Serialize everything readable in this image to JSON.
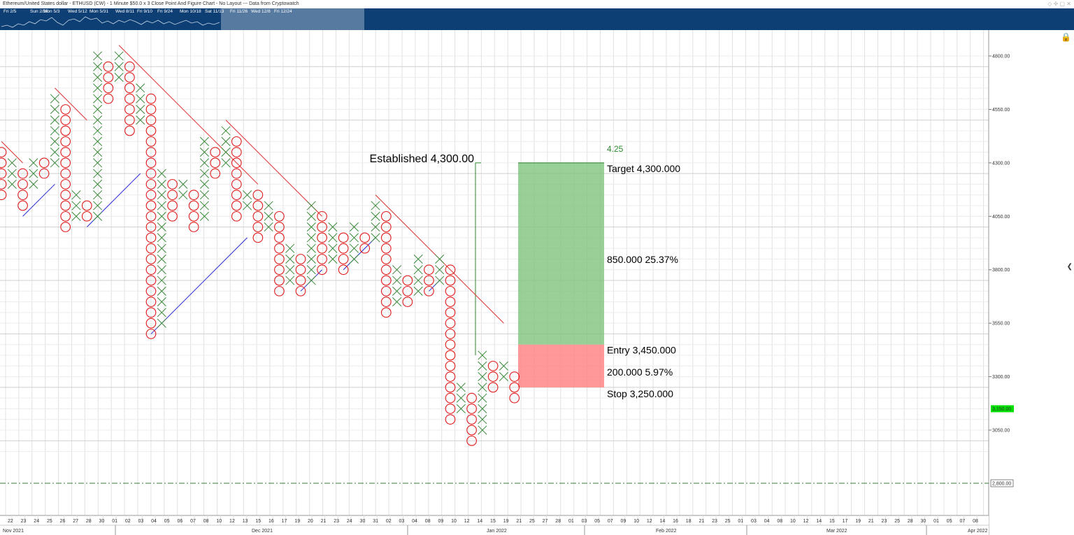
{
  "header": {
    "title": "Ethereum/United States dollar - ETHUSD (CW) - 1 Minute $50.0 x 3 Close Point And Figure Chart - No Layout --- Data from Cryptowatch"
  },
  "navigator": {
    "labels": [
      "Fri 2/5",
      "Sun 2/28",
      "Mon 5/3",
      "Wed 5/12",
      "Mon 5/31",
      "Wed 8/11",
      "Fri 9/10",
      "Fri 9/24",
      "Mon 10/18",
      "Sat 11/13",
      "Fri 11/26",
      "Wed 12/8",
      "Fri 12/24"
    ]
  },
  "colors": {
    "x_mark": "#3a8a3a",
    "o_mark": "#e01c1c",
    "resistance": "#e03030",
    "support": "#2b2bd6",
    "target_zone": "#7ec47e",
    "stop_zone": "#ff7f7f",
    "last_price_badge": "#00e000",
    "grid": "#e2e2e2"
  },
  "chart_data": {
    "type": "point_and_figure",
    "box_size": 50,
    "reversal": 3,
    "y_axis": {
      "ticks": [
        "4800.00",
        "4550.00",
        "4300.00",
        "4050.00",
        "3800.00",
        "3550.00",
        "3300.00",
        "3050.00"
      ],
      "range": [
        2950,
        4850
      ]
    },
    "last_price": "3,150.00",
    "reference_line": "2,800.00",
    "x_tick_labels": [
      "22",
      "23",
      "24",
      "25",
      "26",
      "27",
      "28",
      "30",
      "01",
      "02",
      "03",
      "04",
      "05",
      "06",
      "07",
      "08",
      "10",
      "12",
      "13",
      "15",
      "16",
      "17",
      "19",
      "20",
      "21",
      "23",
      "24",
      "30",
      "31",
      "02",
      "03",
      "04",
      "08",
      "09",
      "10",
      "12",
      "14",
      "15",
      "19",
      "21",
      "25",
      "27",
      "28",
      "01",
      "03",
      "05",
      "07",
      "09",
      "10",
      "12",
      "14",
      "16",
      "18",
      "21",
      "23",
      "25",
      "01",
      "03",
      "04",
      "08",
      "10",
      "12",
      "14",
      "15",
      "17",
      "19",
      "21",
      "23",
      "25",
      "28",
      "30",
      "01",
      "05",
      "07",
      "08"
    ],
    "month_labels": [
      "Nov 2021",
      "Dec 2021",
      "Jan 2022",
      "Feb 2022",
      "Mar 2022",
      "Apr 2022"
    ],
    "columns": [
      {
        "type": "O",
        "from": 4150,
        "to": 4350
      },
      {
        "type": "X",
        "from": 4200,
        "to": 4300
      },
      {
        "type": "O",
        "from": 4100,
        "to": 4250
      },
      {
        "type": "X",
        "from": 4200,
        "to": 4300
      },
      {
        "type": "O",
        "from": 4250,
        "to": 4300
      },
      {
        "type": "X",
        "from": 4300,
        "to": 4600
      },
      {
        "type": "O",
        "from": 4000,
        "to": 4550
      },
      {
        "type": "X",
        "from": 4050,
        "to": 4150
      },
      {
        "type": "O",
        "from": 4050,
        "to": 4100
      },
      {
        "type": "X",
        "from": 4050,
        "to": 4800
      },
      {
        "type": "O",
        "from": 4600,
        "to": 4750
      },
      {
        "type": "X",
        "from": 4700,
        "to": 4800
      },
      {
        "type": "O",
        "from": 4450,
        "to": 4750
      },
      {
        "type": "X",
        "from": 4500,
        "to": 4650
      },
      {
        "type": "O",
        "from": 3500,
        "to": 4600
      },
      {
        "type": "X",
        "from": 3550,
        "to": 4250
      },
      {
        "type": "O",
        "from": 4050,
        "to": 4200
      },
      {
        "type": "X",
        "from": 4150,
        "to": 4200
      },
      {
        "type": "O",
        "from": 4000,
        "to": 4150
      },
      {
        "type": "X",
        "from": 4050,
        "to": 4400
      },
      {
        "type": "O",
        "from": 4250,
        "to": 4350
      },
      {
        "type": "X",
        "from": 4300,
        "to": 4450
      },
      {
        "type": "O",
        "from": 4050,
        "to": 4400
      },
      {
        "type": "X",
        "from": 4100,
        "to": 4150
      },
      {
        "type": "O",
        "from": 3950,
        "to": 4150
      },
      {
        "type": "X",
        "from": 4000,
        "to": 4100
      },
      {
        "type": "O",
        "from": 3700,
        "to": 4050
      },
      {
        "type": "X",
        "from": 3750,
        "to": 3900
      },
      {
        "type": "O",
        "from": 3700,
        "to": 3850
      },
      {
        "type": "X",
        "from": 3750,
        "to": 4100
      },
      {
        "type": "O",
        "from": 3800,
        "to": 4050
      },
      {
        "type": "X",
        "from": 3850,
        "to": 4000
      },
      {
        "type": "O",
        "from": 3800,
        "to": 3950
      },
      {
        "type": "X",
        "from": 3850,
        "to": 4000
      },
      {
        "type": "O",
        "from": 3900,
        "to": 3950
      },
      {
        "type": "X",
        "from": 3950,
        "to": 4100
      },
      {
        "type": "O",
        "from": 3600,
        "to": 4050
      },
      {
        "type": "X",
        "from": 3650,
        "to": 3800
      },
      {
        "type": "O",
        "from": 3650,
        "to": 3750
      },
      {
        "type": "X",
        "from": 3700,
        "to": 3850
      },
      {
        "type": "O",
        "from": 3700,
        "to": 3800
      },
      {
        "type": "X",
        "from": 3750,
        "to": 3850
      },
      {
        "type": "O",
        "from": 3100,
        "to": 3800
      },
      {
        "type": "X",
        "from": 3150,
        "to": 3250
      },
      {
        "type": "O",
        "from": 3000,
        "to": 3200
      },
      {
        "type": "X",
        "from": 3050,
        "to": 3400
      },
      {
        "type": "O",
        "from": 3250,
        "to": 3350
      },
      {
        "type": "X",
        "from": 3300,
        "to": 3350
      },
      {
        "type": "O",
        "from": 3200,
        "to": 3300
      }
    ],
    "trendlines": [
      {
        "kind": "resistance",
        "from": {
          "col": 0,
          "price": 4400
        },
        "to": {
          "col": 2,
          "price": 4300
        }
      },
      {
        "kind": "resistance",
        "from": {
          "col": 5,
          "price": 4650
        },
        "to": {
          "col": 8,
          "price": 4500
        }
      },
      {
        "kind": "resistance",
        "from": {
          "col": 11,
          "price": 4850
        },
        "to": {
          "col": 24,
          "price": 4200
        }
      },
      {
        "kind": "resistance",
        "from": {
          "col": 21,
          "price": 4500
        },
        "to": {
          "col": 30,
          "price": 4050
        }
      },
      {
        "kind": "resistance",
        "from": {
          "col": 35,
          "price": 4150
        },
        "to": {
          "col": 47,
          "price": 3550
        }
      },
      {
        "kind": "support",
        "from": {
          "col": 2,
          "price": 4050
        },
        "to": {
          "col": 5,
          "price": 4200
        }
      },
      {
        "kind": "support",
        "from": {
          "col": 8,
          "price": 4000
        },
        "to": {
          "col": 13,
          "price": 4250
        }
      },
      {
        "kind": "support",
        "from": {
          "col": 14,
          "price": 3500
        },
        "to": {
          "col": 23,
          "price": 3950
        }
      },
      {
        "kind": "support",
        "from": {
          "col": 28,
          "price": 3700
        },
        "to": {
          "col": 30,
          "price": 3800
        }
      },
      {
        "kind": "support",
        "from": {
          "col": 32,
          "price": 3800
        },
        "to": {
          "col": 35,
          "price": 3950
        }
      },
      {
        "kind": "support",
        "from": {
          "col": 40,
          "price": 3700
        },
        "to": {
          "col": 41,
          "price": 3750
        }
      }
    ],
    "annotations": {
      "established_label": "Established 4,300.00",
      "established_price": 4300,
      "ratio_label": "4.25",
      "target_label": "Target",
      "target_value": "4,300.000",
      "gain_amount": "850.000",
      "gain_pct": "25.37%",
      "entry_label": "Entry",
      "entry_value": "3,450.000",
      "risk_amount": "200.000",
      "risk_pct": "5.97%",
      "stop_label": "Stop",
      "stop_value": "3,250.000",
      "target_price": 4300,
      "entry_price": 3450,
      "stop_price": 3250
    }
  }
}
